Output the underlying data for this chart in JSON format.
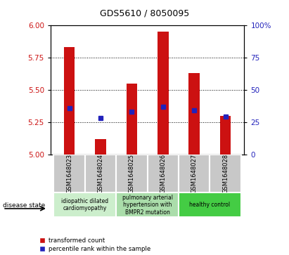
{
  "title": "GDS5610 / 8050095",
  "samples": [
    "GSM1648023",
    "GSM1648024",
    "GSM1648025",
    "GSM1648026",
    "GSM1648027",
    "GSM1648028"
  ],
  "transformed_counts": [
    5.83,
    5.12,
    5.55,
    5.95,
    5.63,
    5.3
  ],
  "percentile_ranks": [
    36,
    28,
    33,
    37,
    34,
    29
  ],
  "ylim_left": [
    5.0,
    6.0
  ],
  "ylim_right": [
    0,
    100
  ],
  "yticks_left": [
    5.0,
    5.25,
    5.5,
    5.75,
    6.0
  ],
  "yticks_right": [
    0,
    25,
    50,
    75,
    100
  ],
  "bar_color": "#cc1111",
  "blue_color": "#2222bb",
  "disease_groups": [
    {
      "label": "idiopathic dilated\ncardiomyopathy",
      "indices": [
        0,
        1
      ],
      "color": "#cceecc"
    },
    {
      "label": "pulmonary arterial\nhypertension with\nBMPR2 mutation",
      "indices": [
        2,
        3
      ],
      "color": "#aaddaa"
    },
    {
      "label": "healthy control",
      "indices": [
        4,
        5
      ],
      "color": "#44cc44"
    }
  ],
  "disease_state_label": "disease state",
  "legend_red": "transformed count",
  "legend_blue": "percentile rank within the sample",
  "bar_width": 0.35,
  "plot_bg_color": "#ffffff",
  "xticklabel_fontsize": 6.0,
  "yticklabel_left_color": "#cc1111",
  "yticklabel_right_color": "#2222bb",
  "gray_box_color": "#c8c8c8",
  "title_fontsize": 9
}
